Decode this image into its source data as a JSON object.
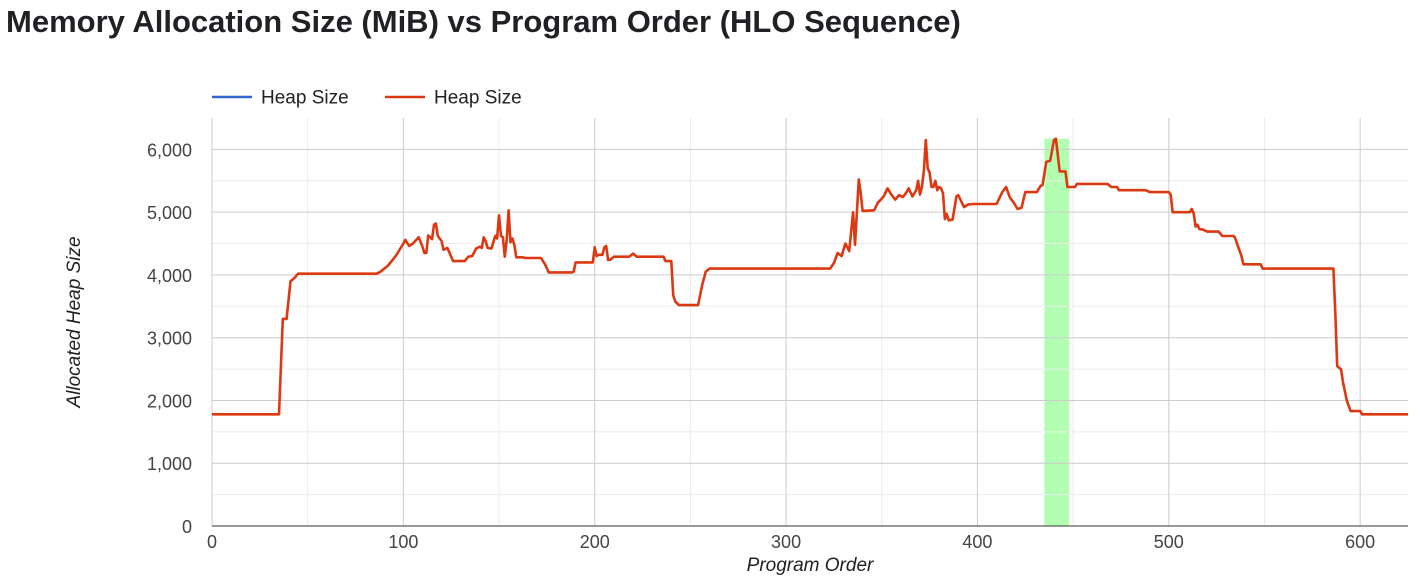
{
  "title": "Memory Allocation Size (MiB) vs Program Order (HLO Sequence)",
  "colors": {
    "series_blue": "#3366cc",
    "series_red": "#dc3912",
    "highlight": "#b2ffb2",
    "gridline": "#cccccc",
    "minor_gridline": "#ebebeb",
    "text": "#444444"
  },
  "chart_data": {
    "type": "line",
    "title": "Memory Allocation Size (MiB) vs Program Order (HLO Sequence)",
    "xlabel": "Program Order",
    "ylabel": "Allocated Heap Size",
    "xlim": [
      0,
      625
    ],
    "ylim": [
      0,
      6500
    ],
    "x_ticks": [
      0,
      100,
      200,
      300,
      400,
      500,
      600
    ],
    "x_tick_labels": [
      "0",
      "100",
      "200",
      "300",
      "400",
      "500",
      "600"
    ],
    "y_ticks": [
      0,
      1000,
      2000,
      3000,
      4000,
      5000,
      6000
    ],
    "y_tick_labels": [
      "0",
      "1,000",
      "2,000",
      "3,000",
      "4,000",
      "5,000",
      "6,000"
    ],
    "grid": true,
    "legend_position": "top-left",
    "highlight_band": {
      "x_start": 435,
      "x_end": 448
    },
    "series": [
      {
        "name": "Heap Size",
        "color": "#3366cc",
        "points": []
      },
      {
        "name": "Heap Size",
        "color": "#dc3912",
        "points": [
          [
            0,
            1780
          ],
          [
            35,
            1780
          ],
          [
            37,
            3300
          ],
          [
            39,
            3300
          ],
          [
            41,
            3900
          ],
          [
            43,
            3950
          ],
          [
            45,
            4020
          ],
          [
            86,
            4020
          ],
          [
            88,
            4050
          ],
          [
            92,
            4150
          ],
          [
            96,
            4300
          ],
          [
            100,
            4500
          ],
          [
            101,
            4560
          ],
          [
            103,
            4460
          ],
          [
            105,
            4500
          ],
          [
            108,
            4600
          ],
          [
            110,
            4450
          ],
          [
            111,
            4350
          ],
          [
            112,
            4350
          ],
          [
            113,
            4630
          ],
          [
            115,
            4570
          ],
          [
            116,
            4800
          ],
          [
            117,
            4820
          ],
          [
            118,
            4620
          ],
          [
            120,
            4540
          ],
          [
            121,
            4400
          ],
          [
            123,
            4430
          ],
          [
            126,
            4220
          ],
          [
            132,
            4220
          ],
          [
            134,
            4290
          ],
          [
            136,
            4300
          ],
          [
            138,
            4420
          ],
          [
            140,
            4450
          ],
          [
            141,
            4430
          ],
          [
            142,
            4600
          ],
          [
            143,
            4540
          ],
          [
            144,
            4430
          ],
          [
            146,
            4420
          ],
          [
            148,
            4620
          ],
          [
            149,
            4580
          ],
          [
            150,
            4950
          ],
          [
            151,
            4620
          ],
          [
            152,
            4600
          ],
          [
            153,
            4290
          ],
          [
            154,
            4560
          ],
          [
            155,
            5030
          ],
          [
            156,
            4520
          ],
          [
            157,
            4580
          ],
          [
            158,
            4480
          ],
          [
            159,
            4280
          ],
          [
            162,
            4280
          ],
          [
            164,
            4270
          ],
          [
            172,
            4270
          ],
          [
            174,
            4170
          ],
          [
            176,
            4040
          ],
          [
            188,
            4040
          ],
          [
            189,
            4050
          ],
          [
            190,
            4200
          ],
          [
            199,
            4200
          ],
          [
            200,
            4440
          ],
          [
            201,
            4300
          ],
          [
            202,
            4320
          ],
          [
            204,
            4320
          ],
          [
            205,
            4440
          ],
          [
            206,
            4460
          ],
          [
            207,
            4240
          ],
          [
            208,
            4240
          ],
          [
            210,
            4290
          ],
          [
            218,
            4290
          ],
          [
            220,
            4340
          ],
          [
            222,
            4290
          ],
          [
            236,
            4290
          ],
          [
            237,
            4220
          ],
          [
            240,
            4220
          ],
          [
            241,
            3680
          ],
          [
            242,
            3580
          ],
          [
            244,
            3520
          ],
          [
            254,
            3520
          ],
          [
            256,
            3820
          ],
          [
            258,
            4050
          ],
          [
            260,
            4100
          ],
          [
            323,
            4100
          ],
          [
            325,
            4190
          ],
          [
            327,
            4350
          ],
          [
            329,
            4300
          ],
          [
            331,
            4500
          ],
          [
            333,
            4380
          ],
          [
            335,
            5000
          ],
          [
            336,
            4480
          ],
          [
            337,
            5000
          ],
          [
            338,
            5520
          ],
          [
            339,
            5300
          ],
          [
            340,
            5020
          ],
          [
            346,
            5030
          ],
          [
            348,
            5150
          ],
          [
            351,
            5250
          ],
          [
            353,
            5380
          ],
          [
            355,
            5280
          ],
          [
            357,
            5200
          ],
          [
            359,
            5270
          ],
          [
            361,
            5240
          ],
          [
            363,
            5320
          ],
          [
            364,
            5380
          ],
          [
            366,
            5250
          ],
          [
            368,
            5350
          ],
          [
            369,
            5500
          ],
          [
            370,
            5280
          ],
          [
            371,
            5400
          ],
          [
            372,
            5660
          ],
          [
            373,
            6150
          ],
          [
            374,
            5700
          ],
          [
            375,
            5630
          ],
          [
            376,
            5400
          ],
          [
            377,
            5400
          ],
          [
            378,
            5500
          ],
          [
            379,
            5350
          ],
          [
            380,
            5400
          ],
          [
            381,
            5380
          ],
          [
            382,
            5300
          ],
          [
            383,
            4890
          ],
          [
            384,
            4970
          ],
          [
            385,
            4870
          ],
          [
            387,
            4880
          ],
          [
            389,
            5250
          ],
          [
            390,
            5270
          ],
          [
            393,
            5080
          ],
          [
            395,
            5120
          ],
          [
            398,
            5130
          ],
          [
            410,
            5130
          ],
          [
            413,
            5320
          ],
          [
            415,
            5400
          ],
          [
            417,
            5230
          ],
          [
            419,
            5150
          ],
          [
            421,
            5050
          ],
          [
            423,
            5070
          ],
          [
            425,
            5320
          ],
          [
            431,
            5320
          ],
          [
            433,
            5420
          ],
          [
            434,
            5430
          ],
          [
            436,
            5800
          ],
          [
            438,
            5820
          ],
          [
            440,
            6150
          ],
          [
            441,
            6170
          ],
          [
            443,
            5650
          ],
          [
            446,
            5650
          ],
          [
            447,
            5400
          ],
          [
            451,
            5400
          ],
          [
            452,
            5450
          ],
          [
            468,
            5450
          ],
          [
            470,
            5400
          ],
          [
            473,
            5400
          ],
          [
            474,
            5350
          ],
          [
            488,
            5350
          ],
          [
            490,
            5320
          ],
          [
            500,
            5320
          ],
          [
            501,
            5280
          ],
          [
            502,
            5000
          ],
          [
            511,
            5000
          ],
          [
            512,
            5050
          ],
          [
            513,
            4980
          ],
          [
            514,
            4770
          ],
          [
            515,
            4800
          ],
          [
            516,
            4730
          ],
          [
            518,
            4720
          ],
          [
            520,
            4690
          ],
          [
            526,
            4690
          ],
          [
            528,
            4620
          ],
          [
            534,
            4620
          ],
          [
            535,
            4560
          ],
          [
            536,
            4470
          ],
          [
            538,
            4300
          ],
          [
            539,
            4170
          ],
          [
            548,
            4170
          ],
          [
            549,
            4100
          ],
          [
            586,
            4100
          ],
          [
            587,
            3400
          ],
          [
            588,
            2550
          ],
          [
            589,
            2520
          ],
          [
            590,
            2500
          ],
          [
            591,
            2300
          ],
          [
            593,
            2000
          ],
          [
            595,
            1830
          ],
          [
            600,
            1830
          ],
          [
            601,
            1780
          ],
          [
            625,
            1780
          ]
        ]
      }
    ]
  }
}
